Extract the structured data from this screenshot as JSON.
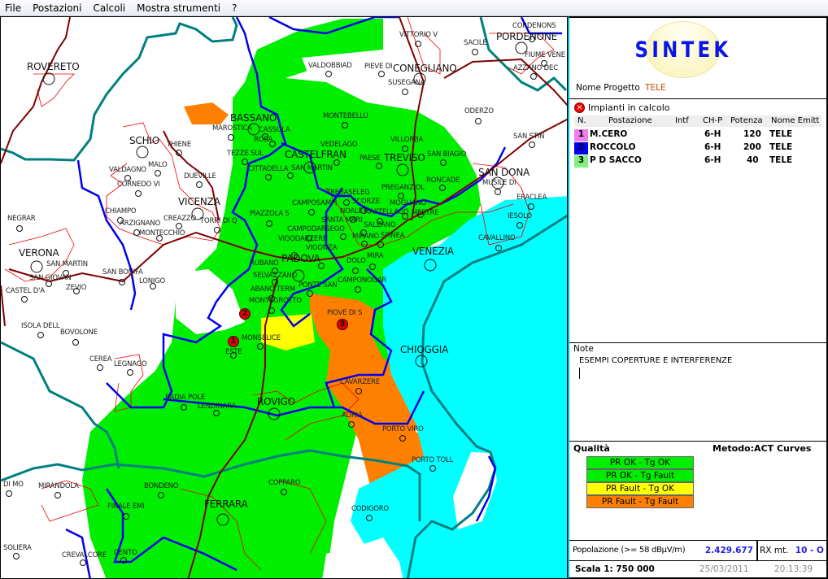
{
  "menu": {
    "items": [
      "File",
      "Postazioni",
      "Calcoli",
      "Mostra strumenti",
      "?"
    ]
  },
  "logo": {
    "text": "SINTEK"
  },
  "project": {
    "label": "Nome Progetto",
    "value": "TELE"
  },
  "impianti": {
    "title": "Impianti in calcolo",
    "columns": [
      "N.",
      "Postazione",
      "Intf",
      "CH-P",
      "Potenza",
      "Nome Emitt"
    ],
    "rows": [
      {
        "n": "1",
        "postazione": "M.CERO",
        "intf": "",
        "chp": "6-H",
        "potenza": "120",
        "emitt": "TELE",
        "color": "#f07cf0"
      },
      {
        "n": "2",
        "postazione": "ROCCOLO",
        "intf": "",
        "chp": "6-H",
        "potenza": "200",
        "emitt": "TELE",
        "color": "#0000ee"
      },
      {
        "n": "3",
        "postazione": "P D SACCO",
        "intf": "",
        "chp": "6-H",
        "potenza": "40",
        "emitt": "TELE",
        "color": "#80f080"
      }
    ]
  },
  "note": {
    "label": "Note",
    "text": "ESEMPI COPERTURE E INTERFERENZE"
  },
  "quality": {
    "label": "Qualità",
    "method": "Metodo:ACT Curves",
    "legend": [
      {
        "label": "PR OK - Tg OK",
        "color": "#00ee00"
      },
      {
        "label": "PR OK - Tg Fault",
        "color": "#00ee00"
      },
      {
        "label": "PR Fault - Tg OK",
        "color": "#ffff00"
      },
      {
        "label": "PR Fault - Tg Fault",
        "color": "#ff8000"
      }
    ]
  },
  "population": {
    "label": "Popolazione (>= 58 dBµV/m)",
    "value": "2.429.677"
  },
  "rx": {
    "label": "RX mt.",
    "value": "10 - O"
  },
  "footer": {
    "scale": "Scala 1:  750 000",
    "date": "25/03/2011",
    "time": "20:13:39"
  },
  "map": {
    "markers": [
      "1",
      "2",
      "3"
    ],
    "cities": [
      "ROVERETO",
      "SCHIO",
      "THIENE",
      "MAROSTICA",
      "BASSANO",
      "TEZZE SUL",
      "CITTADELLA",
      "VALDAGNO",
      "MALO",
      "CORNEDO VI",
      "DUEVILLE",
      "VICENZA",
      "CHIAMPO",
      "ARZIGNANO",
      "CREAZZO",
      "MONTECCHIO",
      "TORRI DI Q",
      "NEGRAR",
      "VERONA",
      "SAN MARTIN",
      "SAN GIOVAN",
      "ZEVIO",
      "CASTEL D'A",
      "SAN BONIFA",
      "LONIGO",
      "ISOLA DELL",
      "BOVOLONE",
      "CEREA",
      "LEGNAGO",
      "BADIA POLE",
      "LENDINARA",
      "ROVIGO",
      "MIRANDOLA",
      "DI MO",
      "BONDENO",
      "FINALE EMI",
      "FERRARA",
      "SOLIERA",
      "CREVALCORE",
      "CENTO",
      "COPPARO",
      "CODIGORO",
      "PORTO TOLL",
      "PORTO VIRO",
      "ADRIA",
      "CAVARZERE",
      "CHIOGGIA",
      "PIOVE DI S",
      "MONSELICE",
      "ESTE",
      "MONTEGROTTO",
      "ABANO TERM",
      "SELVAZZANO",
      "RUBANO",
      "PADOVA",
      "PONTE SAN",
      "CAMPONOGAR",
      "DOLO",
      "MIRA",
      "VIGONZA",
      "VIGODARZERE",
      "CAMPODARSEGO",
      "SANTA MARI",
      "MIRANO",
      "SPINEA",
      "SALZANO",
      "NOALE",
      "MARTELLAGO",
      "CAMPOSAMPI",
      "PIAZZOLA S",
      "TREBASELEG",
      "SCORZE",
      "MOGLIANO",
      "MESTRE",
      "VENEZIA",
      "PREGANZIOL",
      "RONCADE",
      "TREVISO",
      "PAESE",
      "VILLORBA",
      "SAN BIAGIO",
      "CASTELFRAN",
      "VEDELAGO",
      "MONTEBELLU",
      "SAN MARTIN",
      "ROSA",
      "CASSOLA",
      "VALDOBBIAD",
      "PIEVE DI",
      "CONEGLIANO",
      "SUSEGANA",
      "VITTORIO V",
      "SACILE",
      "PORDENONE",
      "CORDENONS",
      "FIUME VENE",
      "AZZANO DEC",
      "ODERZO",
      "SAN STIN",
      "SAN DONA",
      "MUSILE DI",
      "ERACLEA",
      "IESOLO",
      "CAVALLINO"
    ]
  },
  "colors": {
    "coverage_ok": "#00ee00",
    "interference": "#ff8000",
    "partial": "#ffff00",
    "sea": "#00ffff",
    "province_border": "#0000ee",
    "region_border": "#007f80",
    "road": "#800000"
  }
}
